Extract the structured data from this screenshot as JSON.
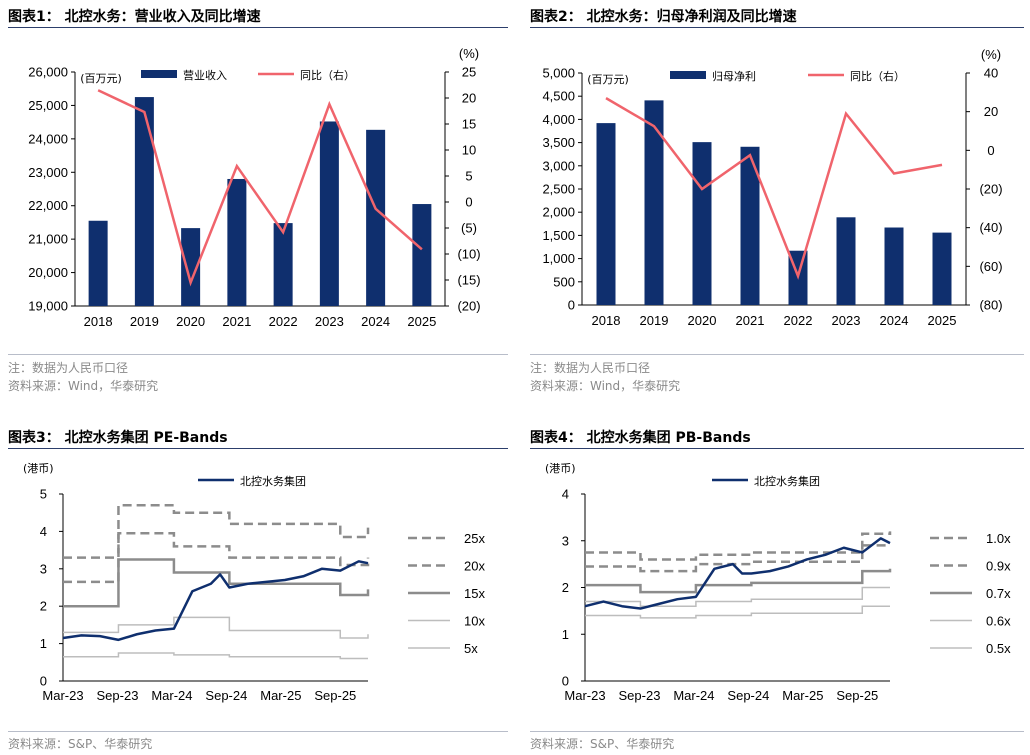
{
  "colors": {
    "bar": "#0f2f6e",
    "yoy": "#f0646c",
    "stock": "#0f2f6e",
    "band_dark": "#8c8c8c",
    "band_light": "#bdbdbd",
    "rule": "#2c3e6b"
  },
  "panels": [
    {
      "title": "图表1： 北控水务：营业收入及同比增速",
      "note": "注：数据为人民币口径",
      "source": "资料来源：Wind，华泰研究"
    },
    {
      "title": "图表2： 北控水务：归母净利润及同比增速",
      "note": "注：数据为人民币口径",
      "source": "资料来源：Wind，华泰研究"
    },
    {
      "title": "图表3： 北控水务集团 PE-Bands",
      "source": "资料来源：S&P、华泰研究"
    },
    {
      "title": "图表4： 北控水务集团 PB-Bands",
      "source": "资料来源：S&P、华泰研究"
    }
  ],
  "chart_data": [
    {
      "type": "bar",
      "categories": [
        "2018",
        "2019",
        "2020",
        "2021",
        "2022",
        "2023",
        "2024",
        "2025"
      ],
      "series": [
        {
          "name": "营业收入",
          "type": "bar",
          "axis": "left",
          "values": [
            21550,
            25250,
            21330,
            22800,
            21480,
            24520,
            24270,
            22050
          ]
        },
        {
          "name": "同比（右）",
          "type": "line",
          "axis": "right",
          "values": [
            21.5,
            17.3,
            -15.5,
            6.9,
            -5.8,
            18.8,
            -1.3,
            -9.1
          ]
        }
      ],
      "ylabel": "(百万元)",
      "ylim": [
        19000,
        26000
      ],
      "yticks": [
        "19,000",
        "20,000",
        "21,000",
        "22,000",
        "23,000",
        "24,000",
        "25,000",
        "26,000"
      ],
      "y2label": "(%)",
      "y2lim": [
        -20,
        25
      ],
      "y2ticks": [
        "(20)",
        "(15)",
        "(10)",
        "(5)",
        "0",
        "5",
        "10",
        "15",
        "20",
        "25"
      ],
      "legend": "top"
    },
    {
      "type": "bar",
      "categories": [
        "2018",
        "2019",
        "2020",
        "2021",
        "2022",
        "2023",
        "2024",
        "2025"
      ],
      "series": [
        {
          "name": "归母净利",
          "type": "bar",
          "axis": "left",
          "values": [
            3920,
            4410,
            3510,
            3410,
            1170,
            1890,
            1670,
            1560
          ]
        },
        {
          "name": "同比（右）",
          "type": "line",
          "axis": "right",
          "values": [
            27,
            12.5,
            -20,
            -2.5,
            -65,
            19,
            -12,
            -7.5
          ]
        }
      ],
      "ylabel": "(百万元)",
      "ylim": [
        0,
        5000
      ],
      "yticks": [
        "0",
        "500",
        "1,000",
        "1,500",
        "2,000",
        "2,500",
        "3,000",
        "3,500",
        "4,000",
        "4,500",
        "5,000"
      ],
      "y2label": "(%)",
      "y2lim": [
        -80,
        40
      ],
      "y2ticks": [
        "(80)",
        "(60)",
        "(40)",
        "(20)",
        "0",
        "20",
        "40"
      ],
      "legend": "top"
    },
    {
      "type": "line",
      "ylabel": "(港币)",
      "ylim": [
        0,
        5
      ],
      "yticks": [
        "0",
        "1",
        "2",
        "3",
        "4",
        "5"
      ],
      "xticks": [
        "Mar-23",
        "Sep-23",
        "Mar-24",
        "Sep-24",
        "Mar-25",
        "Sep-25"
      ],
      "x_range": [
        "2023-03",
        "2025-12"
      ],
      "stock": {
        "name": "北控水务集团",
        "x": [
          "2023-03",
          "2023-05",
          "2023-07",
          "2023-09",
          "2023-11",
          "2024-01",
          "2024-03",
          "2024-05",
          "2024-07",
          "2024-08",
          "2024-09",
          "2024-11",
          "2025-01",
          "2025-03",
          "2025-05",
          "2025-07",
          "2025-09",
          "2025-11",
          "2025-12"
        ],
        "y": [
          1.15,
          1.22,
          1.2,
          1.1,
          1.25,
          1.35,
          1.4,
          2.4,
          2.6,
          2.85,
          2.5,
          2.6,
          2.65,
          2.7,
          2.8,
          3.0,
          2.95,
          3.2,
          3.15
        ]
      },
      "bands": [
        {
          "name": "25x",
          "style": "dashed",
          "steps": [
            {
              "x": "2023-03",
              "y": 3.3
            },
            {
              "x": "2023-09",
              "y": 4.7
            },
            {
              "x": "2024-03",
              "y": 4.5
            },
            {
              "x": "2024-09",
              "y": 4.2
            },
            {
              "x": "2025-09",
              "y": 3.85
            },
            {
              "x": "2025-12",
              "y": 4.1
            }
          ]
        },
        {
          "name": "20x",
          "style": "dashed",
          "steps": [
            {
              "x": "2023-03",
              "y": 2.65
            },
            {
              "x": "2023-09",
              "y": 3.95
            },
            {
              "x": "2024-03",
              "y": 3.6
            },
            {
              "x": "2024-09",
              "y": 3.3
            },
            {
              "x": "2025-09",
              "y": 3.1
            },
            {
              "x": "2025-12",
              "y": 3.3
            }
          ]
        },
        {
          "name": "15x",
          "style": "solid",
          "steps": [
            {
              "x": "2023-03",
              "y": 2.0
            },
            {
              "x": "2023-09",
              "y": 3.25
            },
            {
              "x": "2024-03",
              "y": 2.9
            },
            {
              "x": "2024-09",
              "y": 2.6
            },
            {
              "x": "2025-09",
              "y": 2.3
            },
            {
              "x": "2025-12",
              "y": 2.45
            }
          ]
        },
        {
          "name": "10x",
          "style": "solid",
          "steps": [
            {
              "x": "2023-03",
              "y": 1.3
            },
            {
              "x": "2023-09",
              "y": 1.5
            },
            {
              "x": "2024-03",
              "y": 1.7
            },
            {
              "x": "2024-09",
              "y": 1.35
            },
            {
              "x": "2025-09",
              "y": 1.15
            },
            {
              "x": "2025-12",
              "y": 1.25
            }
          ]
        },
        {
          "name": "5x",
          "style": "solid",
          "steps": [
            {
              "x": "2023-03",
              "y": 0.65
            },
            {
              "x": "2023-09",
              "y": 0.75
            },
            {
              "x": "2024-03",
              "y": 0.7
            },
            {
              "x": "2024-09",
              "y": 0.65
            },
            {
              "x": "2025-09",
              "y": 0.6
            },
            {
              "x": "2025-12",
              "y": 0.6
            }
          ]
        }
      ],
      "legend": "right"
    },
    {
      "type": "line",
      "ylabel": "(港币)",
      "ylim": [
        0,
        4
      ],
      "yticks": [
        "0",
        "1",
        "2",
        "3",
        "4"
      ],
      "xticks": [
        "Mar-23",
        "Sep-23",
        "Mar-24",
        "Sep-24",
        "Mar-25",
        "Sep-25"
      ],
      "x_range": [
        "2023-03",
        "2025-12"
      ],
      "stock": {
        "name": "北控水务集团",
        "x": [
          "2023-03",
          "2023-05",
          "2023-07",
          "2023-09",
          "2023-11",
          "2024-01",
          "2024-03",
          "2024-05",
          "2024-07",
          "2024-08",
          "2024-09",
          "2024-11",
          "2025-01",
          "2025-03",
          "2025-05",
          "2025-07",
          "2025-09",
          "2025-11",
          "2025-12"
        ],
        "y": [
          1.6,
          1.7,
          1.6,
          1.55,
          1.65,
          1.75,
          1.8,
          2.4,
          2.5,
          2.3,
          2.3,
          2.35,
          2.45,
          2.6,
          2.7,
          2.85,
          2.75,
          3.05,
          2.95
        ]
      },
      "bands": [
        {
          "name": "1.0x",
          "style": "dashed",
          "steps": [
            {
              "x": "2023-03",
              "y": 2.75
            },
            {
              "x": "2023-09",
              "y": 2.6
            },
            {
              "x": "2024-03",
              "y": 2.7
            },
            {
              "x": "2024-09",
              "y": 2.75
            },
            {
              "x": "2025-09",
              "y": 3.15
            },
            {
              "x": "2025-12",
              "y": 3.2
            }
          ]
        },
        {
          "name": "0.9x",
          "style": "dashed",
          "steps": [
            {
              "x": "2023-03",
              "y": 2.45
            },
            {
              "x": "2023-09",
              "y": 2.35
            },
            {
              "x": "2024-03",
              "y": 2.5
            },
            {
              "x": "2024-09",
              "y": 2.55
            },
            {
              "x": "2025-09",
              "y": 2.9
            },
            {
              "x": "2025-12",
              "y": 2.9
            }
          ]
        },
        {
          "name": "0.7x",
          "style": "solid",
          "steps": [
            {
              "x": "2023-03",
              "y": 2.05
            },
            {
              "x": "2023-09",
              "y": 1.9
            },
            {
              "x": "2024-03",
              "y": 2.05
            },
            {
              "x": "2024-09",
              "y": 2.1
            },
            {
              "x": "2025-09",
              "y": 2.35
            },
            {
              "x": "2025-12",
              "y": 2.4
            }
          ]
        },
        {
          "name": "0.6x",
          "style": "solid",
          "steps": [
            {
              "x": "2023-03",
              "y": 1.7
            },
            {
              "x": "2023-09",
              "y": 1.6
            },
            {
              "x": "2024-03",
              "y": 1.7
            },
            {
              "x": "2024-09",
              "y": 1.75
            },
            {
              "x": "2025-09",
              "y": 2.0
            },
            {
              "x": "2025-12",
              "y": 2.0
            }
          ]
        },
        {
          "name": "0.5x",
          "style": "solid",
          "steps": [
            {
              "x": "2023-03",
              "y": 1.4
            },
            {
              "x": "2023-09",
              "y": 1.35
            },
            {
              "x": "2024-03",
              "y": 1.4
            },
            {
              "x": "2024-09",
              "y": 1.45
            },
            {
              "x": "2025-09",
              "y": 1.6
            },
            {
              "x": "2025-12",
              "y": 1.6
            }
          ]
        }
      ],
      "legend": "right"
    }
  ]
}
